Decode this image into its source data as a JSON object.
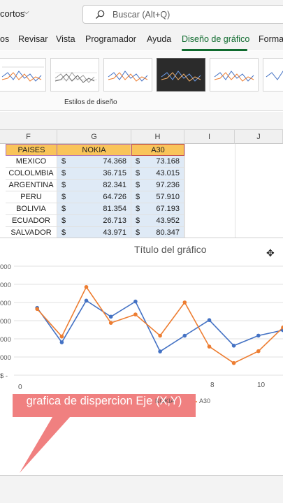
{
  "titlebar": {
    "file_name": "cortos",
    "search_placeholder": "Buscar (Alt+Q)"
  },
  "ribbon": {
    "tabs": [
      {
        "label": "os"
      },
      {
        "label": "Revisar"
      },
      {
        "label": "Vista"
      },
      {
        "label": "Programador"
      },
      {
        "label": "Ayuda"
      },
      {
        "label": "Diseño de gráfico"
      },
      {
        "label": "Forma"
      }
    ],
    "active_tab": "Diseño de gráfico",
    "group_label": "Estilos de diseño"
  },
  "sheet": {
    "columns": [
      "F",
      "G",
      "H",
      "I",
      "J"
    ],
    "header_row": [
      "PAISES",
      "NOKIA",
      "A30"
    ],
    "currency_symbol": "$",
    "rows": [
      {
        "pais": "MEXICO",
        "nokia": "74.368",
        "a30": "73.168"
      },
      {
        "pais": "COLOLMBIA",
        "nokia": "36.715",
        "a30": "43.015"
      },
      {
        "pais": "ARGENTINA",
        "nokia": "82.341",
        "a30": "97.236"
      },
      {
        "pais": "PERU",
        "nokia": "64.726",
        "a30": "57.910"
      },
      {
        "pais": "BOLIVIA",
        "nokia": "81.354",
        "a30": "67.193"
      },
      {
        "pais": "ECUADOR",
        "nokia": "26.713",
        "a30": "43.952"
      },
      {
        "pais": "SALVADOR",
        "nokia": "43.971",
        "a30": "80.347"
      }
    ]
  },
  "chart": {
    "title": "Título del gráfico",
    "y_tick_labels": [
      "000",
      "000",
      "000",
      "000",
      "000",
      "000",
      "$ -"
    ],
    "x_tick_labels": [
      "0",
      "8",
      "10"
    ],
    "legend": [
      "NOKIA",
      "A30"
    ],
    "colors": {
      "nokia": "#4472c4",
      "a30": "#ed7d31"
    }
  },
  "chart_data": {
    "type": "scatter",
    "title": "Título del gráfico",
    "x": [
      1,
      2,
      3,
      4,
      5,
      6,
      7,
      8,
      9,
      10,
      11
    ],
    "series": [
      {
        "name": "NOKIA",
        "values": [
          74368,
          36715,
          82341,
          64726,
          81354,
          26713,
          43971,
          61000,
          33000,
          44000,
          50000
        ]
      },
      {
        "name": "A30",
        "values": [
          73168,
          43015,
          97236,
          57910,
          67193,
          43952,
          80347,
          32000,
          14000,
          27000,
          53000
        ]
      }
    ],
    "xlim": [
      0,
      11
    ],
    "ylim": [
      0,
      120000
    ]
  },
  "callout": {
    "text": "grafica de dispercion Eje (X,Y)",
    "color": "#f08080"
  }
}
